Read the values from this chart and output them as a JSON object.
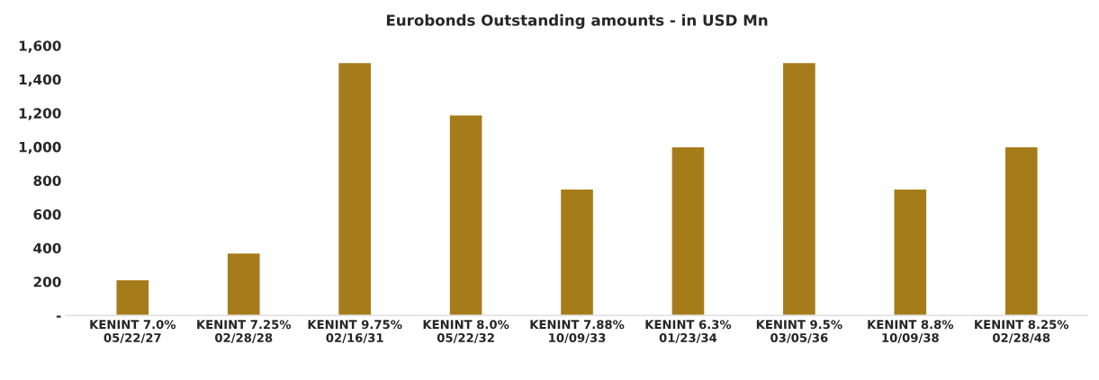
{
  "chart_data": {
    "type": "bar",
    "title": "Eurobonds Outstanding amounts - in USD Mn",
    "categories": [
      "KENINT 7.0%\n05/22/27",
      "KENINT 7.25%\n02/28/28",
      "KENINT 9.75%\n02/16/31",
      "KENINT 8.0%\n05/22/32",
      "KENINT 7.88%\n10/09/33",
      "KENINT 6.3%\n01/23/34",
      "KENINT 9.5%\n03/05/36",
      "KENINT 8.8%\n10/09/38",
      "KENINT 8.25%\n02/28/48"
    ],
    "values": [
      212,
      370,
      1500,
      1190,
      750,
      1000,
      1500,
      750,
      1000
    ],
    "color": "#a67c1a",
    "ylim": [
      0,
      1600
    ],
    "yticks": [
      {
        "value": 0,
        "label": "-"
      },
      {
        "value": 200,
        "label": "200"
      },
      {
        "value": 400,
        "label": "400"
      },
      {
        "value": 600,
        "label": "600"
      },
      {
        "value": 800,
        "label": "800"
      },
      {
        "value": 1000,
        "label": "1,000"
      },
      {
        "value": 1200,
        "label": "1,200"
      },
      {
        "value": 1400,
        "label": "1,400"
      },
      {
        "value": 1600,
        "label": "1,600"
      }
    ],
    "grid": false
  }
}
